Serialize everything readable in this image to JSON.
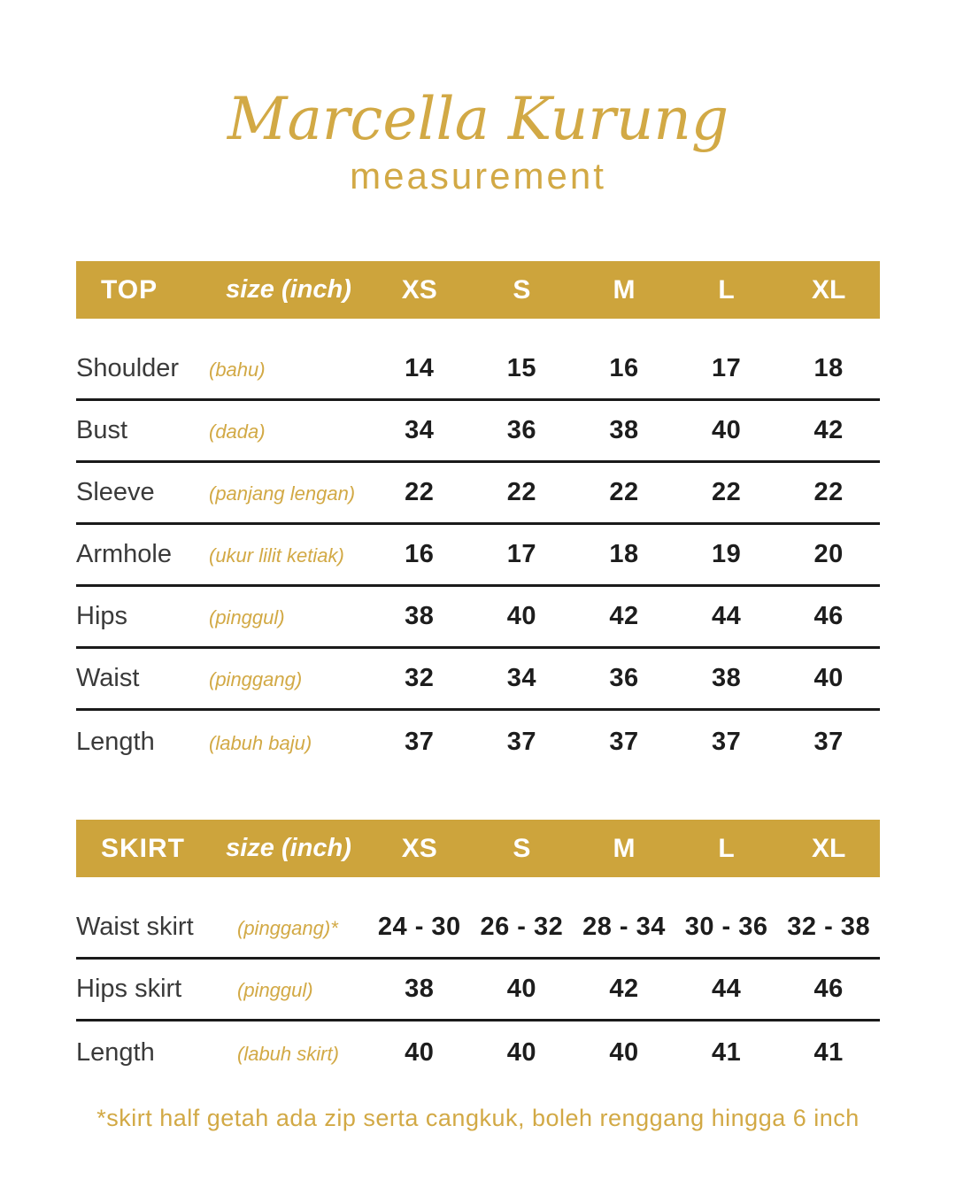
{
  "page": {
    "title": "Marcella Kurung",
    "subtitle": "measurement",
    "footnote": "*skirt half getah ada zip serta cangkuk, boleh renggang hingga 6 inch"
  },
  "colors": {
    "band_gold": "#CDA43C",
    "accent_gold": "#D2A945",
    "separator_line": "#1A1A1A",
    "header_text": "#FFFFFF",
    "value_text": "#1D1D1D",
    "label_text": "#3A3A3A"
  },
  "tables": [
    {
      "name": "TOP",
      "unit_label": "size (inch)",
      "columns": [
        "XS",
        "S",
        "M",
        "L",
        "XL"
      ],
      "rows": [
        {
          "label": "Shoulder",
          "sublabel": "(bahu)",
          "values": [
            "14",
            "15",
            "16",
            "17",
            "18"
          ]
        },
        {
          "label": "Bust",
          "sublabel": "(dada)",
          "values": [
            "34",
            "36",
            "38",
            "40",
            "42"
          ]
        },
        {
          "label": "Sleeve",
          "sublabel": "(panjang lengan)",
          "values": [
            "22",
            "22",
            "22",
            "22",
            "22"
          ]
        },
        {
          "label": "Armhole",
          "sublabel": "(ukur lilit ketiak)",
          "values": [
            "16",
            "17",
            "18",
            "19",
            "20"
          ]
        },
        {
          "label": "Hips",
          "sublabel": "(pinggul)",
          "values": [
            "38",
            "40",
            "42",
            "44",
            "46"
          ]
        },
        {
          "label": "Waist",
          "sublabel": "(pinggang)",
          "values": [
            "32",
            "34",
            "36",
            "38",
            "40"
          ]
        },
        {
          "label": "Length",
          "sublabel": "(labuh baju)",
          "values": [
            "37",
            "37",
            "37",
            "37",
            "37"
          ]
        }
      ]
    },
    {
      "name": "SKIRT",
      "unit_label": "size (inch)",
      "columns": [
        "XS",
        "S",
        "M",
        "L",
        "XL"
      ],
      "rows": [
        {
          "label": "Waist skirt",
          "sublabel": "(pinggang)*",
          "values": [
            "24 - 30",
            "26 - 32",
            "28 - 34",
            "30 - 36",
            "32 - 38"
          ]
        },
        {
          "label": "Hips skirt",
          "sublabel": "(pinggul)",
          "values": [
            "38",
            "40",
            "42",
            "44",
            "46"
          ]
        },
        {
          "label": "Length",
          "sublabel": "(labuh skirt)",
          "values": [
            "40",
            "40",
            "40",
            "41",
            "41"
          ]
        }
      ]
    }
  ]
}
